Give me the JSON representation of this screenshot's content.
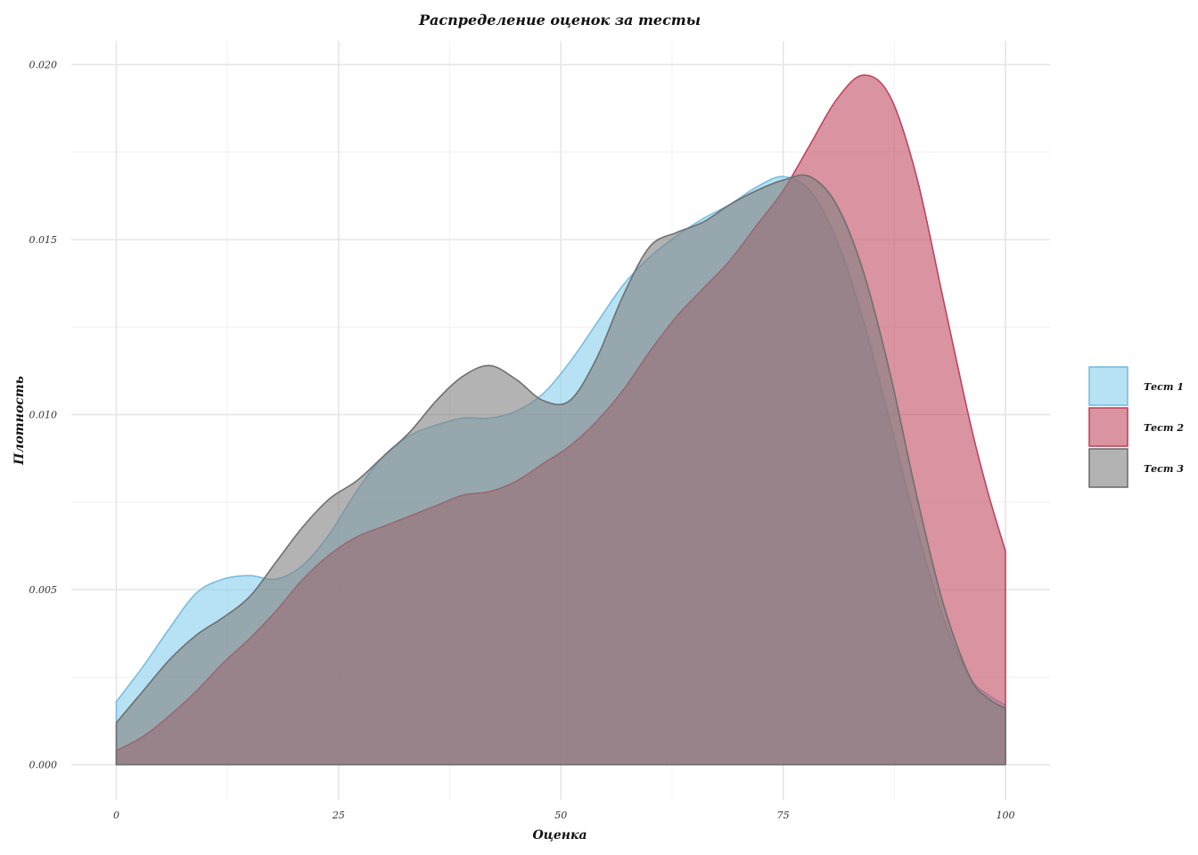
{
  "chart_data": {
    "type": "area",
    "title": "Распределение оценок за тесты",
    "xlabel": "Оценка",
    "ylabel": "Плотность",
    "xlim": [
      -2,
      102
    ],
    "ylim": [
      0,
      0.0205
    ],
    "x_ticks": [
      0,
      25,
      50,
      75,
      100
    ],
    "x_tick_labels": [
      "0",
      "25",
      "50",
      "75",
      "100"
    ],
    "y_ticks": [
      0,
      0.005,
      0.01,
      0.015,
      0.02
    ],
    "y_tick_labels": [
      "0.000",
      "0.005",
      "0.010",
      "0.015",
      "0.020"
    ],
    "grid": true,
    "legend_position": "right",
    "series": [
      {
        "name": "Тест 1",
        "fill": "#87ceeb",
        "stroke": "#79bde0",
        "x": [
          0,
          3,
          6,
          9,
          12,
          15,
          18,
          21,
          24,
          27,
          30,
          33,
          36,
          39,
          42,
          45,
          48,
          51,
          54,
          57,
          60,
          63,
          66,
          69,
          72,
          75,
          78,
          81,
          84,
          87,
          90,
          93,
          96,
          98,
          100
        ],
        "y": [
          0.0018,
          0.0028,
          0.0039,
          0.0049,
          0.0053,
          0.0054,
          0.0053,
          0.0057,
          0.0066,
          0.0078,
          0.0088,
          0.0094,
          0.0097,
          0.0099,
          0.0099,
          0.0101,
          0.0106,
          0.0115,
          0.0126,
          0.0137,
          0.0145,
          0.0151,
          0.0156,
          0.016,
          0.0165,
          0.0168,
          0.0164,
          0.015,
          0.0127,
          0.0098,
          0.0068,
          0.0042,
          0.0025,
          0.002,
          0.0017
        ]
      },
      {
        "name": "Тест 2",
        "fill": "#c14b63",
        "stroke": "#c0445c",
        "x": [
          0,
          3,
          6,
          9,
          12,
          15,
          18,
          21,
          24,
          27,
          30,
          33,
          36,
          39,
          42,
          45,
          48,
          51,
          54,
          57,
          60,
          63,
          66,
          69,
          72,
          75,
          78,
          81,
          84,
          87,
          90,
          93,
          96,
          98,
          100
        ],
        "y": [
          0.0004,
          0.0008,
          0.0014,
          0.0021,
          0.0029,
          0.0036,
          0.0044,
          0.0053,
          0.006,
          0.0065,
          0.0068,
          0.0071,
          0.0074,
          0.0077,
          0.0078,
          0.0081,
          0.0086,
          0.0091,
          0.0098,
          0.0107,
          0.0118,
          0.0128,
          0.0136,
          0.0144,
          0.0154,
          0.0164,
          0.0177,
          0.019,
          0.0197,
          0.0191,
          0.0168,
          0.0133,
          0.0098,
          0.0078,
          0.0061
        ]
      },
      {
        "name": "Тест 3",
        "fill": "#808080",
        "stroke": "#6f6f6f",
        "x": [
          0,
          3,
          6,
          9,
          12,
          15,
          18,
          21,
          24,
          27,
          30,
          33,
          36,
          39,
          42,
          45,
          48,
          51,
          54,
          57,
          60,
          63,
          66,
          69,
          72,
          75,
          78,
          81,
          84,
          87,
          90,
          93,
          96,
          98,
          100
        ],
        "y": [
          0.0012,
          0.0021,
          0.003,
          0.0037,
          0.0042,
          0.0048,
          0.0058,
          0.0068,
          0.0076,
          0.0081,
          0.0088,
          0.0095,
          0.0104,
          0.0111,
          0.0114,
          0.011,
          0.0104,
          0.0104,
          0.0116,
          0.0134,
          0.0148,
          0.0152,
          0.0155,
          0.016,
          0.0164,
          0.0167,
          0.0168,
          0.016,
          0.0141,
          0.0112,
          0.0077,
          0.0046,
          0.0025,
          0.0019,
          0.0016
        ]
      }
    ]
  }
}
